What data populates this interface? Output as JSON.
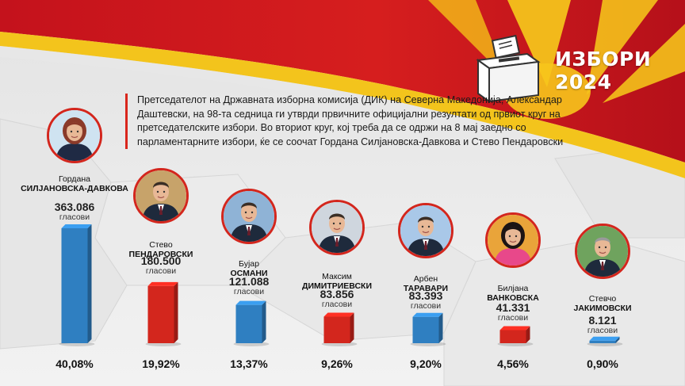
{
  "title": {
    "line1": "ИЗБОРИ",
    "line2": "2024"
  },
  "description": "Претседателот на Државната изборна комисија (ДИК) на Северна Македонија, Александар Даштевски, на 98-та седница ги утврди првичните официјални резултати од првиот круг на претседателските избори. Во вториот круг, кој треба да се одржи на 8 мај заедно со парламентарните избори, ќе се соочат Гордана Силјановска-Давкова и Стево Пендаровски",
  "votes_label": "гласови",
  "colors": {
    "blue": "#2f7fc1",
    "red": "#d3261d"
  },
  "chart_data": {
    "type": "bar",
    "title": "",
    "categories": [
      "Гордана СИЛЈАНОВСКА-ДАВКОВА",
      "Стево ПЕНДАРОВСКИ",
      "Бујар ОСМАНИ",
      "Максим ДИМИТРИЕВСКИ",
      "Арбен ТАРАВАРИ",
      "Билјана ВАНКОВСКА",
      "Стевчо ЈАКИМОВСКИ"
    ],
    "values": [
      363086,
      180500,
      121088,
      83856,
      83393,
      41331,
      8121
    ],
    "percentages": [
      40.08,
      19.92,
      13.37,
      9.26,
      9.2,
      4.56,
      0.9
    ],
    "bar_colors": [
      "blue",
      "red",
      "blue",
      "red",
      "blue",
      "red",
      "blue"
    ]
  },
  "candidates": [
    {
      "first": "Гордана",
      "last": "СИЛЈАНОВСКА-ДАВКОВА",
      "votes": "363.086",
      "pct": "40,08%",
      "icon": "woman-portrait-icon"
    },
    {
      "first": "Стево",
      "last": "ПЕНДАРОВСКИ",
      "votes": "180.500",
      "pct": "19,92%",
      "icon": "man-portrait-icon"
    },
    {
      "first": "Бујар",
      "last": "ОСМАНИ",
      "votes": "121.088",
      "pct": "13,37%",
      "icon": "man-portrait-icon"
    },
    {
      "first": "Максим",
      "last": "ДИМИТРИЕВСКИ",
      "votes": "83.856",
      "pct": "9,26%",
      "icon": "man-portrait-icon"
    },
    {
      "first": "Арбен",
      "last": "ТАРАВАРИ",
      "votes": "83.393",
      "pct": "9,20%",
      "icon": "man-portrait-icon"
    },
    {
      "first": "Билјана",
      "last": "ВАНКОВСКА",
      "votes": "41.331",
      "pct": "4,56%",
      "icon": "woman-portrait-icon"
    },
    {
      "first": "Стевчо",
      "last": "ЈАКИМОВСКИ",
      "votes": "8.121",
      "pct": "0,90%",
      "icon": "man-portrait-icon"
    }
  ]
}
